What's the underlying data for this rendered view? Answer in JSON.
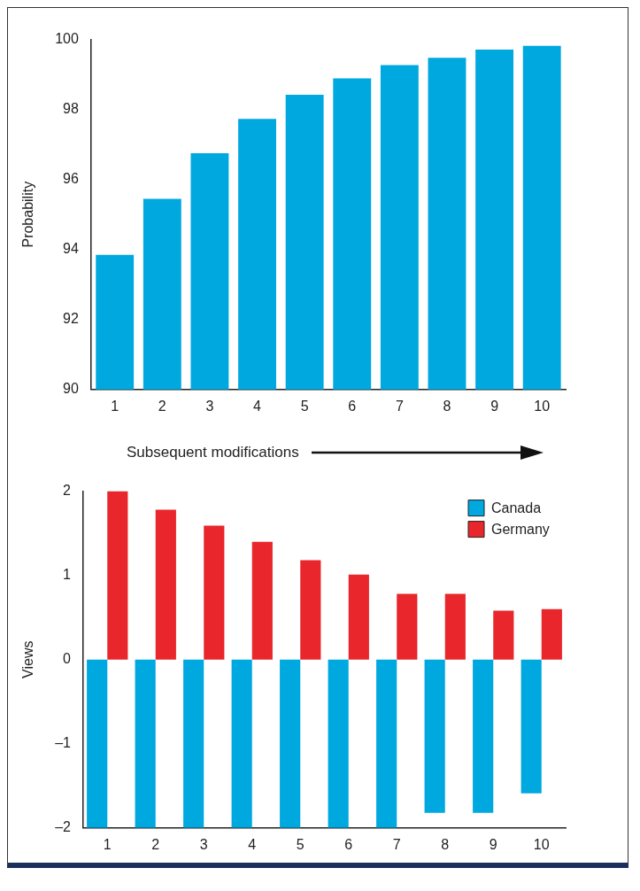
{
  "chart_data": [
    {
      "type": "bar",
      "ylabel": "Probability",
      "xlabel": "Subsequent modifications",
      "categories": [
        "1",
        "2",
        "3",
        "4",
        "5",
        "6",
        "7",
        "8",
        "9",
        "10"
      ],
      "series": [
        {
          "color": "#00a8e0",
          "values": [
            93.85,
            95.45,
            96.75,
            97.73,
            98.42,
            98.89,
            99.27,
            99.48,
            99.71,
            99.82
          ]
        }
      ],
      "ylim": [
        90,
        100
      ],
      "yticks": [
        90,
        92,
        94,
        96,
        98,
        100
      ],
      "grid": false,
      "legend": false
    },
    {
      "type": "bar",
      "ylabel": "Views",
      "categories": [
        "1",
        "2",
        "3",
        "4",
        "5",
        "6",
        "7",
        "8",
        "9",
        "10"
      ],
      "series": [
        {
          "name": "Canada",
          "color": "#00a8e0",
          "values": [
            -2,
            -2,
            -2,
            -2,
            -2,
            -2,
            -2,
            -1.82,
            -1.82,
            -1.59
          ]
        },
        {
          "name": "Germany",
          "color": "#e8262b",
          "values": [
            2,
            1.78,
            1.59,
            1.4,
            1.18,
            1.01,
            0.78,
            0.78,
            0.58,
            0.6
          ]
        }
      ],
      "ylim": [
        -2,
        2
      ],
      "yticks": [
        {
          "value": -2,
          "label": "–2"
        },
        {
          "value": -1,
          "label": "–1"
        },
        0,
        1,
        2
      ],
      "grid": false,
      "legend": "top right"
    }
  ]
}
